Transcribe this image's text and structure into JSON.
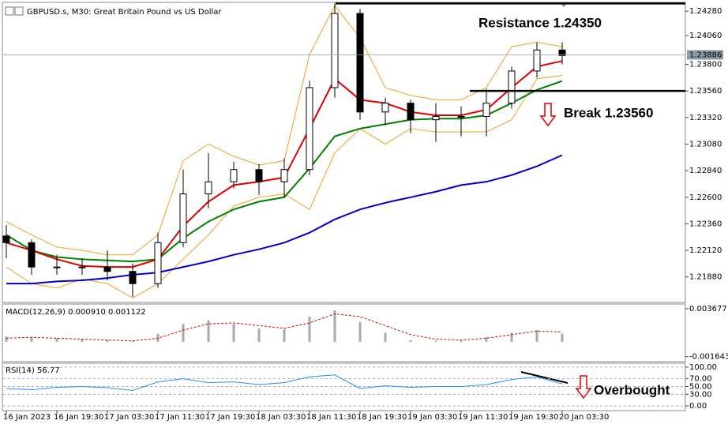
{
  "chart_data": [
    {
      "type": "candlestick",
      "title": "GBPUSD.s, M30:  Great Britain Pound vs US Dollar",
      "categories": [
        "16 Jan 2023",
        null,
        "16 Jan 19:30",
        null,
        "17 Jan 03:30",
        null,
        "17 Jan 11:30",
        null,
        "17 Jan 19:30",
        null,
        "18 Jan 03:30",
        null,
        "18 Jan 11:30",
        null,
        "18 Jan 19:30",
        null,
        "19 Jan 03:30",
        null,
        "19 Jan 11:30",
        null,
        "19 Jan 19:30",
        null,
        "20 Jan 03:30"
      ],
      "open": [
        1.2225,
        1.2219,
        1.2197,
        1.2197,
        1.2197,
        1.2193,
        1.2182,
        1.2219,
        1.2263,
        1.2274,
        1.2285,
        1.2274,
        1.2285,
        1.2359,
        1.2426,
        1.2337,
        1.2345,
        1.233,
        1.2333,
        1.2333,
        1.2345,
        1.2374,
        1.2393
      ],
      "high": [
        1.2235,
        1.2222,
        1.2208,
        1.2205,
        1.2212,
        1.22,
        1.2228,
        1.2285,
        1.23,
        1.2292,
        1.229,
        1.2295,
        1.2365,
        1.2435,
        1.243,
        1.235,
        1.2348,
        1.2345,
        1.2342,
        1.2358,
        1.2378,
        1.24,
        1.24
      ],
      "low": [
        1.2205,
        1.219,
        1.219,
        1.219,
        1.2185,
        1.217,
        1.2178,
        1.2215,
        1.225,
        1.2268,
        1.2262,
        1.226,
        1.228,
        1.235,
        1.233,
        1.2325,
        1.2318,
        1.231,
        1.2315,
        1.2315,
        1.234,
        1.2368,
        1.238
      ],
      "close": [
        1.2219,
        1.2197,
        1.2197,
        1.2197,
        1.2193,
        1.2182,
        1.2219,
        1.2263,
        1.2274,
        1.2285,
        1.2274,
        1.2285,
        1.2359,
        1.2426,
        1.2337,
        1.2345,
        1.233,
        1.2333,
        1.2333,
        1.2345,
        1.2374,
        1.2393,
        1.2388
      ],
      "series": [
        {
          "color": "#f0a020",
          "values": [
            1.2238,
            1.2226,
            1.2215,
            1.2212,
            1.2208,
            1.2208,
            1.2226,
            1.2293,
            1.2308,
            1.2297,
            1.2289,
            1.2293,
            1.2389,
            1.2433,
            1.2404,
            1.2359,
            1.2352,
            1.2348,
            1.2348,
            1.2359,
            1.2396,
            1.24,
            1.2396
          ]
        },
        {
          "color": "#f0a020",
          "values": [
            1.2197,
            1.2182,
            1.2178,
            1.2186,
            1.2182,
            1.2169,
            1.2182,
            1.2204,
            1.2226,
            1.2252,
            1.226,
            1.2263,
            1.2249,
            1.23,
            1.2322,
            1.2308,
            1.2322,
            1.2319,
            1.2319,
            1.2319,
            1.233,
            1.2367,
            1.237
          ]
        },
        {
          "color": "#0000c8",
          "values": [
            1.2182,
            1.2182,
            1.2184,
            1.2185,
            1.2187,
            1.219,
            1.2192,
            1.2197,
            1.2202,
            1.2208,
            1.2213,
            1.2219,
            1.2228,
            1.224,
            1.2249,
            1.2255,
            1.226,
            1.2265,
            1.2271,
            1.2274,
            1.228,
            1.2288,
            1.2298
          ]
        },
        {
          "color": "#008000",
          "values": [
            1.2226,
            1.2212,
            1.2206,
            1.2204,
            1.2203,
            1.2202,
            1.2204,
            1.2223,
            1.2238,
            1.2249,
            1.2256,
            1.226,
            1.2286,
            1.2315,
            1.2322,
            1.2326,
            1.233,
            1.2331,
            1.2331,
            1.2334,
            1.2345,
            1.2357,
            1.2365
          ]
        },
        {
          "color": "#e00000",
          "values": [
            1.2219,
            1.2212,
            1.2204,
            1.2198,
            1.2197,
            1.2197,
            1.2204,
            1.2234,
            1.2256,
            1.2271,
            1.2274,
            1.2278,
            1.2322,
            1.2367,
            1.2348,
            1.2345,
            1.2337,
            1.2334,
            1.2334,
            1.2339,
            1.2359,
            1.2378,
            1.2383
          ]
        }
      ],
      "ylim": [
        1.2165,
        1.2436
      ],
      "yticks": [
        {
          "value": 1.2188,
          "label": "1.21880"
        },
        {
          "value": 1.2212,
          "label": "1.22120"
        },
        {
          "value": 1.2236,
          "label": "1.22360"
        },
        {
          "value": 1.226,
          "label": "1.22600"
        },
        {
          "value": 1.2284,
          "label": "1.22840"
        },
        {
          "value": 1.2308,
          "label": "1.23080"
        },
        {
          "value": 1.2332,
          "label": "1.23320"
        },
        {
          "value": 1.2356,
          "label": "1.23560"
        },
        {
          "value": 1.238,
          "label": "1.23800"
        },
        {
          "value": 1.2406,
          "label": "1.24060"
        },
        {
          "value": 1.2428,
          "label": "1.24280"
        }
      ],
      "last_price": 1.23886,
      "annotations": [
        {
          "text": "Resistance 1.24350",
          "value": 1.2435
        },
        {
          "text": "Break 1.23560",
          "value": 1.2356
        }
      ]
    },
    {
      "type": "macd",
      "title": "MACD(12,26,9) 0.000910 0.001122",
      "series": [
        {
          "color": "#a8a8a8",
          "values": [
            0.0006,
            0.0005,
            0.0004,
            0.0003,
            0.0002,
            0.0001,
            0.0009,
            0.002,
            0.0024,
            0.002,
            0.0015,
            0.0014,
            0.0028,
            0.0035,
            0.0022,
            0.001,
            0.0002,
            0.0001,
            0.0002,
            0.0005,
            0.001,
            0.0013,
            0.0009
          ]
        },
        {
          "color": "#e00000",
          "values": [
            0.0004,
            0.0005,
            0.0004,
            0.0003,
            0.0002,
            0.0001,
            0.0004,
            0.0013,
            0.002,
            0.0021,
            0.0018,
            0.0015,
            0.0021,
            0.0031,
            0.0028,
            0.0018,
            0.0008,
            0.0003,
            0.0002,
            0.0004,
            0.0008,
            0.0012,
            0.0011
          ]
        }
      ],
      "ylim": [
        -0.0022,
        0.0042
      ],
      "yticks": [
        -0.001643,
        0.003677
      ]
    },
    {
      "type": "line",
      "title": "RSI(14) 56.77",
      "series": [
        {
          "color": "#1e90ff",
          "values": [
            45,
            42,
            48,
            50,
            47,
            40,
            62,
            70,
            60,
            62,
            55,
            60,
            75,
            80,
            45,
            52,
            48,
            50,
            50,
            55,
            68,
            75,
            56.77
          ]
        }
      ],
      "ylim": [
        -12,
        110
      ],
      "yticks": [
        {
          "value": 0,
          "label": "0.00"
        },
        {
          "value": 30,
          "label": "30.00"
        },
        {
          "value": 50,
          "label": "50.00"
        },
        {
          "value": 70,
          "label": "70.00"
        },
        {
          "value": 100,
          "label": "100.00"
        }
      ],
      "annotations": [
        {
          "text": "Overbought"
        }
      ]
    }
  ]
}
